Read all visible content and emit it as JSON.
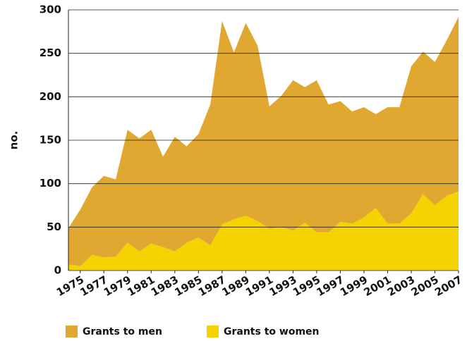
{
  "chart_data": {
    "type": "stacked_area",
    "y_label": "no.",
    "x": [
      1974,
      1975,
      1976,
      1977,
      1978,
      1979,
      1980,
      1981,
      1982,
      1983,
      1984,
      1985,
      1986,
      1987,
      1988,
      1989,
      1990,
      1991,
      1992,
      1993,
      1994,
      1995,
      1996,
      1997,
      1998,
      1999,
      2000,
      2001,
      2002,
      2003,
      2004,
      2005,
      2006,
      2007
    ],
    "xlim": [
      1974,
      2007
    ],
    "xticks": [
      1975,
      1977,
      1979,
      1981,
      1983,
      1985,
      1987,
      1989,
      1991,
      1993,
      1995,
      1997,
      1999,
      2001,
      2003,
      2005,
      2007
    ],
    "ylim": [
      0,
      300
    ],
    "yticks": [
      0,
      50,
      100,
      150,
      200,
      250,
      300
    ],
    "grid": true,
    "series": [
      {
        "name": "Grants to men",
        "color": "#e1a831",
        "values": [
          42,
          65,
          78,
          94,
          89,
          130,
          130,
          131,
          104,
          132,
          111,
          119,
          162,
          234,
          192,
          222,
          202,
          141,
          151,
          173,
          156,
          175,
          147,
          139,
          129,
          127,
          108,
          134,
          134,
          169,
          164,
          165,
          179,
          201
        ]
      },
      {
        "name": "Grants to women",
        "color": "#f4d300",
        "values": [
          7,
          5,
          18,
          15,
          16,
          32,
          22,
          31,
          27,
          22,
          32,
          38,
          29,
          53,
          59,
          63,
          57,
          48,
          50,
          46,
          55,
          44,
          44,
          56,
          54,
          61,
          72,
          54,
          54,
          66,
          88,
          75,
          86,
          91
        ]
      }
    ]
  }
}
